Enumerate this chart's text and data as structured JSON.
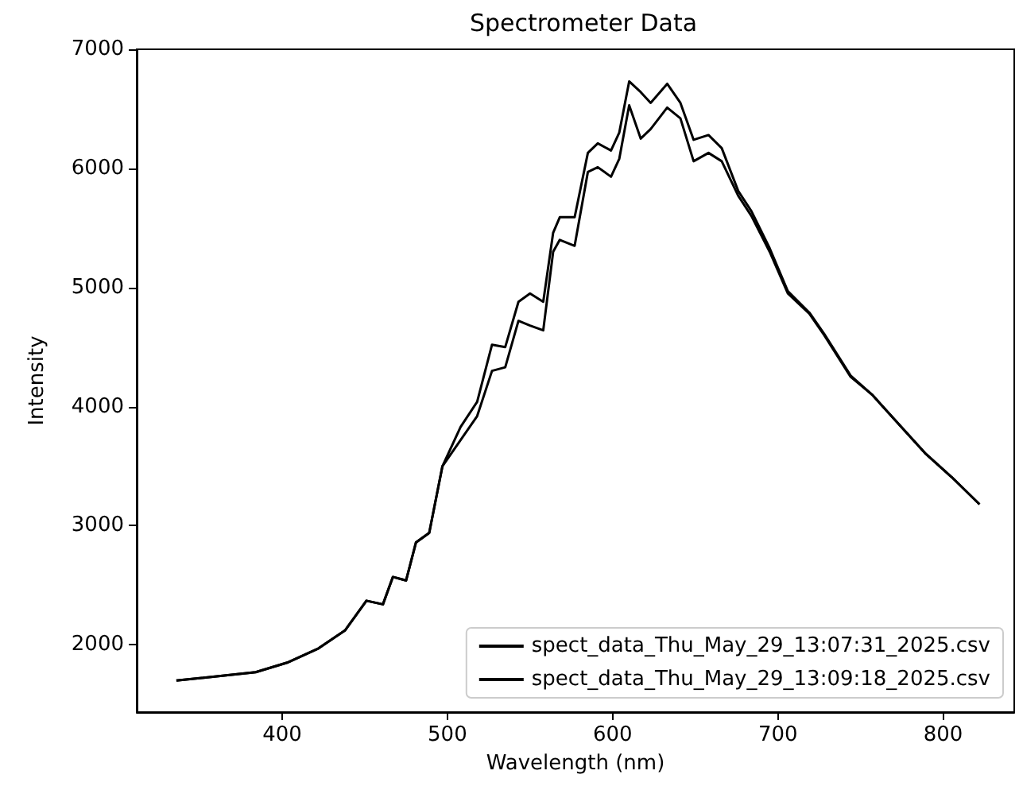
{
  "chart_data": {
    "type": "line",
    "title": "Spectrometer Data",
    "xlabel": "Wavelength (nm)",
    "ylabel": "Intensity",
    "x": [
      336,
      384,
      403,
      422,
      438,
      451,
      461,
      467,
      475,
      481,
      489,
      497,
      508,
      518,
      527,
      535,
      543,
      550,
      558,
      564,
      568,
      577,
      585,
      591,
      599,
      604,
      610,
      617,
      623,
      633,
      641,
      649,
      658,
      666,
      676,
      684,
      695,
      706,
      719,
      728,
      744,
      757,
      770,
      789,
      805,
      822
    ],
    "series": [
      {
        "name": "spect_data_Thu_May_29_13:07:31_2025.csv",
        "color": "#000000",
        "values": [
          1700,
          1770,
          1850,
          1970,
          2120,
          2370,
          2340,
          2570,
          2540,
          2860,
          2940,
          3500,
          3830,
          4040,
          4520,
          4500,
          4880,
          4950,
          4880,
          5460,
          5590,
          5590,
          6130,
          6210,
          6150,
          6300,
          6730,
          6640,
          6550,
          6710,
          6550,
          6240,
          6280,
          6170,
          5810,
          5640,
          5330,
          4970,
          4790,
          4610,
          4260,
          4100,
          3900,
          3610,
          3410,
          3180
        ]
      },
      {
        "name": "spect_data_Thu_May_29_13:09:18_2025.csv",
        "color": "#000000",
        "values": [
          1700,
          1770,
          1850,
          1970,
          2120,
          2370,
          2340,
          2570,
          2540,
          2860,
          2940,
          3500,
          3720,
          3920,
          4300,
          4330,
          4720,
          4680,
          4640,
          5300,
          5400,
          5350,
          5970,
          6010,
          5930,
          6080,
          6530,
          6250,
          6330,
          6510,
          6420,
          6060,
          6130,
          6060,
          5770,
          5600,
          5300,
          4950,
          4780,
          4600,
          4250,
          4100,
          3900,
          3610,
          3410,
          3180
        ]
      }
    ],
    "xlim": [
      312,
      843
    ],
    "xticks": [
      400,
      500,
      600,
      700,
      800
    ],
    "ylim": [
      1435,
      7000
    ],
    "yticks": [
      2000,
      3000,
      4000,
      5000,
      6000,
      7000
    ],
    "grid": false,
    "legend": "bottom right",
    "marker": "none",
    "line_style": "solid"
  }
}
